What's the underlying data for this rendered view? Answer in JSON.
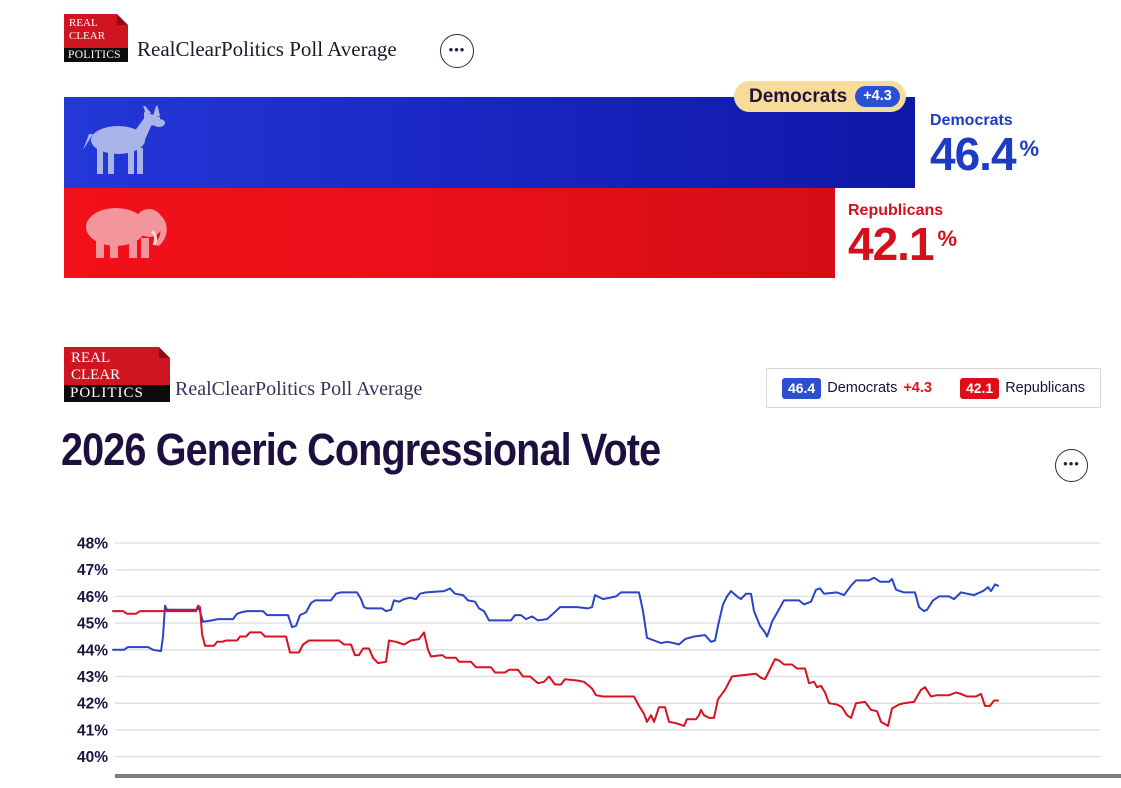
{
  "widget": {
    "logo": {
      "line1": "REAL",
      "line2": "CLEAR",
      "line3": "POLITICS"
    },
    "title": "RealClearPolitics Poll Average",
    "ellipsis_icon": "•••",
    "leader_badge": {
      "label": "Democrats",
      "margin": "+4.3"
    },
    "democrats": {
      "label": "Democrats",
      "value": "46.4",
      "unit": "%"
    },
    "republicans": {
      "label": "Republicans",
      "value": "42.1",
      "unit": "%"
    }
  },
  "panel": {
    "logo": {
      "line1": "REAL",
      "line2": "CLEAR",
      "line3": "POLITICS"
    },
    "title": "RealClearPolitics Poll Average",
    "ellipsis_icon": "•••",
    "heading": "2026 Generic Congressional Vote",
    "legend": [
      {
        "value": "46.4",
        "label": "Democrats",
        "margin": "+4.3"
      },
      {
        "value": "42.1",
        "label": "Republicans",
        "margin": ""
      }
    ]
  },
  "colors": {
    "democrat_blue": "#1c3cc5",
    "republican_red": "#d60f1d",
    "badge_background": "#f6db9a",
    "badge_chip_blue": "#2b50d5",
    "legend_badge_blue": "#2b4fd0",
    "legend_badge_red": "#e00d18",
    "heading_ink": "#1d1040"
  },
  "chart_data": {
    "type": "line",
    "title": "2026 Generic Congressional Vote",
    "xlabel": "",
    "ylabel": "",
    "ylim": [
      40,
      48
    ],
    "grid": true,
    "x_axis_labels_visible": false,
    "x_unit": "px (no date labels shown on screen)",
    "y_ticks": [
      {
        "label": "48%",
        "value": 48
      },
      {
        "label": "47%",
        "value": 47
      },
      {
        "label": "46%",
        "value": 46
      },
      {
        "label": "45%",
        "value": 45
      },
      {
        "label": "44%",
        "value": 44
      },
      {
        "label": "43%",
        "value": 43
      },
      {
        "label": "42%",
        "value": 42
      },
      {
        "label": "41%",
        "value": 41
      },
      {
        "label": "40%",
        "value": 40
      }
    ],
    "series": [
      {
        "name": "Democrats",
        "color": "#2944c9",
        "final_value": 46.4,
        "points": [
          [
            113,
            44
          ],
          [
            124,
            44
          ],
          [
            128,
            44.1
          ],
          [
            148,
            44.1
          ],
          [
            153,
            44
          ],
          [
            161,
            43.95
          ],
          [
            163,
            44.5
          ],
          [
            165,
            45.65
          ],
          [
            167,
            45.5
          ],
          [
            196,
            45.5
          ],
          [
            199,
            45.55
          ],
          [
            201,
            45.3
          ],
          [
            203,
            45.05
          ],
          [
            212,
            45.1
          ],
          [
            218,
            45.15
          ],
          [
            233,
            45.15
          ],
          [
            237,
            45.35
          ],
          [
            241,
            45.4
          ],
          [
            247,
            45.45
          ],
          [
            263,
            45.45
          ],
          [
            267,
            45.3
          ],
          [
            288,
            45.3
          ],
          [
            292,
            44.85
          ],
          [
            296,
            44.9
          ],
          [
            300,
            45.3
          ],
          [
            306,
            45.4
          ],
          [
            311,
            45.75
          ],
          [
            315,
            45.85
          ],
          [
            331,
            45.85
          ],
          [
            336,
            46.1
          ],
          [
            341,
            46.15
          ],
          [
            357,
            46.15
          ],
          [
            361,
            45.9
          ],
          [
            364,
            45.6
          ],
          [
            367,
            45.55
          ],
          [
            382,
            45.55
          ],
          [
            386,
            45.45
          ],
          [
            391,
            45.5
          ],
          [
            394,
            45.85
          ],
          [
            399,
            45.8
          ],
          [
            404,
            45.9
          ],
          [
            410,
            45.95
          ],
          [
            416,
            45.9
          ],
          [
            420,
            46.1
          ],
          [
            426,
            46.15
          ],
          [
            444,
            46.2
          ],
          [
            450,
            46.3
          ],
          [
            455,
            46.1
          ],
          [
            463,
            46.05
          ],
          [
            468,
            45.85
          ],
          [
            475,
            45.8
          ],
          [
            479,
            45.55
          ],
          [
            484,
            45.45
          ],
          [
            489,
            45.1
          ],
          [
            511,
            45.1
          ],
          [
            515,
            45.3
          ],
          [
            521,
            45.3
          ],
          [
            526,
            45.15
          ],
          [
            532,
            45.25
          ],
          [
            538,
            45.1
          ],
          [
            547,
            45.15
          ],
          [
            553,
            45.35
          ],
          [
            560,
            45.6
          ],
          [
            577,
            45.6
          ],
          [
            588,
            45.55
          ],
          [
            592,
            45.6
          ],
          [
            595,
            46.05
          ],
          [
            603,
            45.9
          ],
          [
            610,
            45.95
          ],
          [
            616,
            46
          ],
          [
            621,
            46.15
          ],
          [
            639,
            46.15
          ],
          [
            643,
            45.45
          ],
          [
            647,
            44.45
          ],
          [
            654,
            44.35
          ],
          [
            661,
            44.25
          ],
          [
            667,
            44.3
          ],
          [
            674,
            44.25
          ],
          [
            679,
            44.2
          ],
          [
            685,
            44.4
          ],
          [
            694,
            44.5
          ],
          [
            705,
            44.55
          ],
          [
            711,
            44.3
          ],
          [
            715,
            44.35
          ],
          [
            718,
            44.9
          ],
          [
            723,
            45.7
          ],
          [
            727,
            46
          ],
          [
            731,
            46.2
          ],
          [
            737,
            46
          ],
          [
            741,
            45.9
          ],
          [
            746,
            46.1
          ],
          [
            751,
            46.1
          ],
          [
            754,
            45.45
          ],
          [
            760,
            44.9
          ],
          [
            765,
            44.65
          ],
          [
            767,
            44.5
          ],
          [
            769,
            44.7
          ],
          [
            772,
            45.05
          ],
          [
            778,
            45.45
          ],
          [
            784,
            45.85
          ],
          [
            799,
            45.85
          ],
          [
            804,
            45.7
          ],
          [
            811,
            45.8
          ],
          [
            816,
            46.25
          ],
          [
            820,
            46.3
          ],
          [
            824,
            46.1
          ],
          [
            837,
            46.15
          ],
          [
            844,
            46.05
          ],
          [
            851,
            46.4
          ],
          [
            856,
            46.6
          ],
          [
            869,
            46.6
          ],
          [
            874,
            46.7
          ],
          [
            880,
            46.55
          ],
          [
            889,
            46.55
          ],
          [
            892,
            46.65
          ],
          [
            896,
            46.25
          ],
          [
            904,
            46.15
          ],
          [
            915,
            46.15
          ],
          [
            919,
            45.6
          ],
          [
            924,
            45.45
          ],
          [
            927,
            45.5
          ],
          [
            933,
            45.85
          ],
          [
            939,
            46
          ],
          [
            949,
            46
          ],
          [
            954,
            45.9
          ],
          [
            961,
            46.15
          ],
          [
            967,
            46.1
          ],
          [
            974,
            46.05
          ],
          [
            983,
            46.2
          ],
          [
            988,
            46.35
          ],
          [
            991,
            46.2
          ],
          [
            995,
            46.45
          ],
          [
            998,
            46.4
          ]
        ]
      },
      {
        "name": "Republicans",
        "color": "#d8121f",
        "final_value": 42.1,
        "points": [
          [
            113,
            45.45
          ],
          [
            123,
            45.45
          ],
          [
            127,
            45.35
          ],
          [
            136,
            45.35
          ],
          [
            140,
            45.45
          ],
          [
            196,
            45.45
          ],
          [
            198,
            45.65
          ],
          [
            200,
            45.6
          ],
          [
            202,
            44.6
          ],
          [
            205,
            44.15
          ],
          [
            214,
            44.15
          ],
          [
            217,
            44.3
          ],
          [
            222,
            44.3
          ],
          [
            226,
            44.35
          ],
          [
            237,
            44.35
          ],
          [
            240,
            44.5
          ],
          [
            246,
            44.5
          ],
          [
            250,
            44.65
          ],
          [
            261,
            44.65
          ],
          [
            265,
            44.5
          ],
          [
            286,
            44.5
          ],
          [
            290,
            43.9
          ],
          [
            299,
            43.9
          ],
          [
            303,
            44.2
          ],
          [
            309,
            44.35
          ],
          [
            339,
            44.35
          ],
          [
            344,
            44.2
          ],
          [
            351,
            44.2
          ],
          [
            355,
            43.8
          ],
          [
            359,
            43.8
          ],
          [
            363,
            44.05
          ],
          [
            369,
            44.05
          ],
          [
            373,
            43.7
          ],
          [
            378,
            43.5
          ],
          [
            386,
            43.55
          ],
          [
            389,
            44.35
          ],
          [
            396,
            44.3
          ],
          [
            404,
            44.2
          ],
          [
            411,
            44.35
          ],
          [
            419,
            44.4
          ],
          [
            424,
            44.65
          ],
          [
            428,
            44
          ],
          [
            431,
            43.75
          ],
          [
            442,
            43.8
          ],
          [
            446,
            43.7
          ],
          [
            456,
            43.7
          ],
          [
            459,
            43.55
          ],
          [
            471,
            43.55
          ],
          [
            476,
            43.35
          ],
          [
            491,
            43.35
          ],
          [
            495,
            43.15
          ],
          [
            505,
            43.15
          ],
          [
            509,
            43.25
          ],
          [
            518,
            43.25
          ],
          [
            523,
            43
          ],
          [
            530,
            43
          ],
          [
            538,
            42.75
          ],
          [
            544,
            42.8
          ],
          [
            549,
            43
          ],
          [
            555,
            42.7
          ],
          [
            561,
            42.7
          ],
          [
            565,
            42.9
          ],
          [
            577,
            42.85
          ],
          [
            584,
            42.8
          ],
          [
            592,
            42.55
          ],
          [
            596,
            42.3
          ],
          [
            603,
            42.25
          ],
          [
            634,
            42.25
          ],
          [
            639,
            41.9
          ],
          [
            644,
            41.6
          ],
          [
            647,
            41.3
          ],
          [
            651,
            41.55
          ],
          [
            654,
            41.3
          ],
          [
            659,
            41.85
          ],
          [
            665,
            41.85
          ],
          [
            669,
            41.3
          ],
          [
            676,
            41.25
          ],
          [
            684,
            41.15
          ],
          [
            687,
            41.4
          ],
          [
            696,
            41.4
          ],
          [
            699,
            41.55
          ],
          [
            701,
            41.75
          ],
          [
            704,
            41.55
          ],
          [
            709,
            41.45
          ],
          [
            714,
            41.45
          ],
          [
            718,
            42.15
          ],
          [
            725,
            42.5
          ],
          [
            732,
            43
          ],
          [
            742,
            43.05
          ],
          [
            756,
            43.1
          ],
          [
            761,
            42.95
          ],
          [
            765,
            42.9
          ],
          [
            769,
            43.2
          ],
          [
            775,
            43.65
          ],
          [
            779,
            43.6
          ],
          [
            784,
            43.45
          ],
          [
            792,
            43.45
          ],
          [
            797,
            43.3
          ],
          [
            805,
            43.3
          ],
          [
            809,
            42.75
          ],
          [
            814,
            42.8
          ],
          [
            817,
            42.6
          ],
          [
            821,
            42.65
          ],
          [
            825,
            42.4
          ],
          [
            829,
            42
          ],
          [
            837,
            41.95
          ],
          [
            842,
            41.85
          ],
          [
            847,
            41.55
          ],
          [
            851,
            41.45
          ],
          [
            856,
            42
          ],
          [
            865,
            42.05
          ],
          [
            871,
            41.75
          ],
          [
            877,
            41.7
          ],
          [
            881,
            41.3
          ],
          [
            888,
            41.15
          ],
          [
            892,
            41.8
          ],
          [
            899,
            41.95
          ],
          [
            904,
            42
          ],
          [
            914,
            42.05
          ],
          [
            921,
            42.5
          ],
          [
            925,
            42.6
          ],
          [
            931,
            42.25
          ],
          [
            937,
            42.3
          ],
          [
            949,
            42.3
          ],
          [
            956,
            42.4
          ],
          [
            961,
            42.35
          ],
          [
            967,
            42.25
          ],
          [
            976,
            42.25
          ],
          [
            981,
            42.35
          ],
          [
            985,
            41.9
          ],
          [
            990,
            41.9
          ],
          [
            994,
            42.1
          ],
          [
            998,
            42.1
          ]
        ]
      }
    ]
  }
}
